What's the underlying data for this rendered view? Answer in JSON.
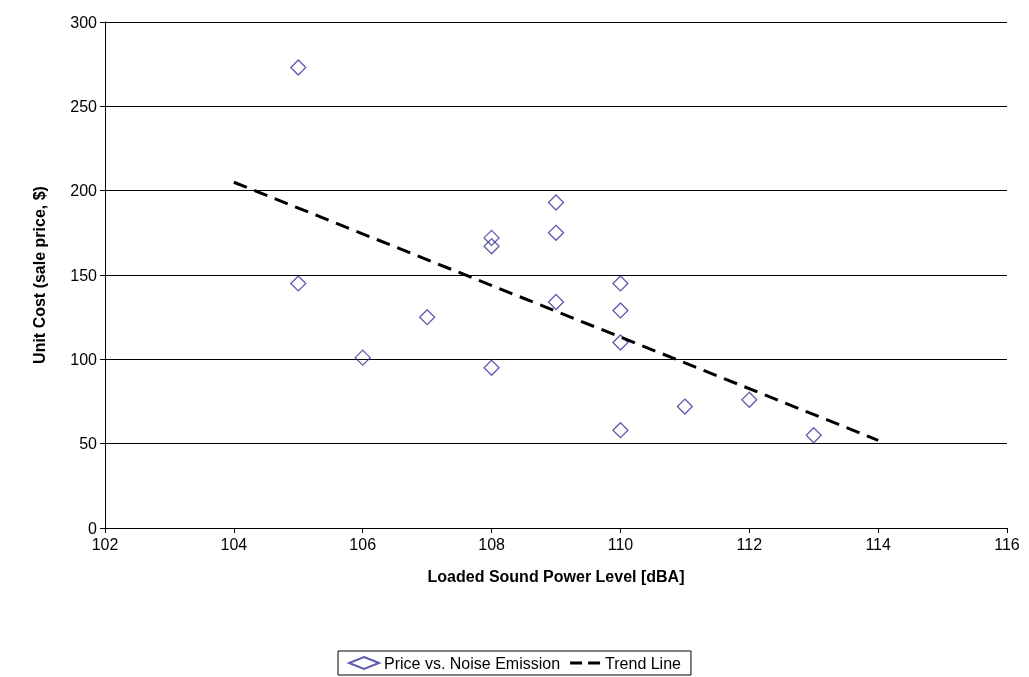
{
  "chart_data": {
    "type": "scatter",
    "xlabel": "Loaded Sound Power Level [dBA]",
    "ylabel": "Unit Cost (sale price, $)",
    "xlim": [
      102,
      116
    ],
    "xticks": [
      102,
      104,
      106,
      108,
      110,
      112,
      114,
      116
    ],
    "ylim": [
      0,
      300
    ],
    "yticks": [
      0,
      50,
      100,
      150,
      200,
      250,
      300
    ],
    "grid": "y",
    "legend": "bottom",
    "series": [
      {
        "name": "Price vs. Noise Emission",
        "marker": "diamond",
        "color": "#333399",
        "x": [
          105,
          105,
          106,
          107,
          108,
          108,
          108,
          109,
          109,
          109,
          110,
          110,
          110,
          110,
          111,
          112,
          113
        ],
        "values": [
          273,
          145,
          101,
          125,
          172,
          167,
          95,
          193,
          175,
          134,
          145,
          129,
          110,
          58,
          72,
          76,
          55
        ]
      },
      {
        "name": "Trend Line",
        "type": "line",
        "marker": "none",
        "line_style": "dashed",
        "color": "#000000",
        "x": [
          104,
          114
        ],
        "values": [
          205,
          52
        ]
      }
    ]
  }
}
